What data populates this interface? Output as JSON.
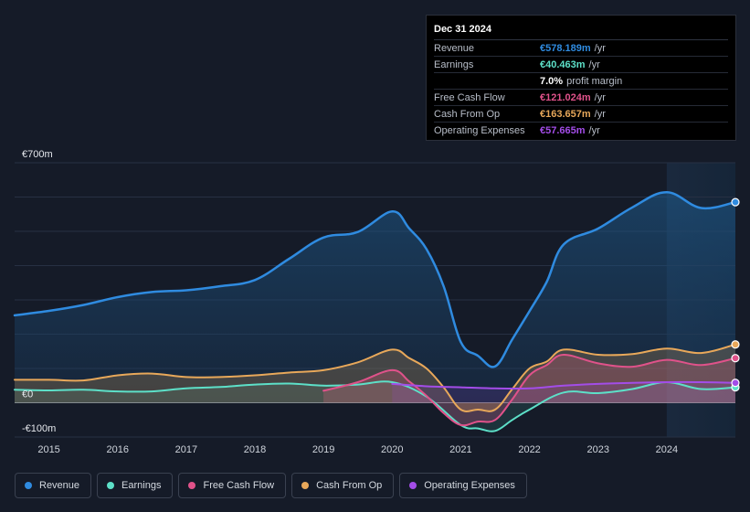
{
  "tooltip": {
    "date": "Dec 31 2024",
    "rows": [
      {
        "label": "Revenue",
        "value": "€578.189m",
        "unit": "/yr",
        "color": "#2f8be0"
      },
      {
        "label": "Earnings",
        "value": "€40.463m",
        "unit": "/yr",
        "color": "#5de0c8"
      },
      {
        "label": "",
        "value": "7.0%",
        "unit": "profit margin",
        "color": "#ffffff"
      },
      {
        "label": "Free Cash Flow",
        "value": "€121.024m",
        "unit": "/yr",
        "color": "#e0528a"
      },
      {
        "label": "Cash From Op",
        "value": "€163.657m",
        "unit": "/yr",
        "color": "#e8a85a"
      },
      {
        "label": "Operating Expenses",
        "value": "€57.665m",
        "unit": "/yr",
        "color": "#a34de8"
      }
    ]
  },
  "legend": [
    {
      "label": "Revenue",
      "color": "#2f8be0"
    },
    {
      "label": "Earnings",
      "color": "#5de0c8"
    },
    {
      "label": "Free Cash Flow",
      "color": "#e0528a"
    },
    {
      "label": "Cash From Op",
      "color": "#e8a85a"
    },
    {
      "label": "Operating Expenses",
      "color": "#a34de8"
    }
  ],
  "chart_data": {
    "type": "area",
    "title": "",
    "xlabel": "",
    "ylabel": "",
    "ylim": [
      -100,
      700
    ],
    "xlim": [
      2014.5,
      2025.0
    ],
    "y_tick_labels": [
      {
        "value": 700,
        "label": "€700m"
      },
      {
        "value": 0,
        "label": "€0"
      },
      {
        "value": -100,
        "label": "-€100m"
      }
    ],
    "x_tick_labels": [
      "2015",
      "2016",
      "2017",
      "2018",
      "2019",
      "2020",
      "2021",
      "2022",
      "2023",
      "2024"
    ],
    "x_ticks": [
      2015,
      2016,
      2017,
      2018,
      2019,
      2020,
      2021,
      2022,
      2023,
      2024
    ],
    "highlight_from": 2024.0,
    "series": [
      {
        "name": "Revenue",
        "color": "#2f8be0",
        "x": [
          2014.5,
          2015.0,
          2015.5,
          2016.0,
          2016.5,
          2017.0,
          2017.5,
          2018.0,
          2018.5,
          2019.0,
          2019.5,
          2020.0,
          2020.25,
          2020.5,
          2020.75,
          2021.0,
          2021.25,
          2021.5,
          2021.75,
          2022.0,
          2022.25,
          2022.5,
          2023.0,
          2023.5,
          2024.0,
          2024.5,
          2025.0
        ],
        "values": [
          255,
          268,
          285,
          308,
          323,
          328,
          340,
          358,
          420,
          482,
          498,
          558,
          508,
          448,
          340,
          177,
          137,
          106,
          185,
          267,
          352,
          462,
          508,
          570,
          614,
          568,
          585
        ]
      },
      {
        "name": "Earnings",
        "color": "#5de0c8",
        "x": [
          2014.5,
          2015.0,
          2015.5,
          2016.0,
          2016.5,
          2017.0,
          2017.5,
          2018.0,
          2018.5,
          2019.0,
          2019.5,
          2020.0,
          2020.5,
          2021.0,
          2021.25,
          2021.5,
          2021.75,
          2022.0,
          2022.5,
          2023.0,
          2023.5,
          2024.0,
          2024.5,
          2025.0
        ],
        "values": [
          38,
          36,
          38,
          33,
          33,
          42,
          46,
          53,
          56,
          50,
          53,
          60,
          18,
          -65,
          -75,
          -82,
          -50,
          -20,
          30,
          28,
          40,
          60,
          40,
          45
        ]
      },
      {
        "name": "Free Cash Flow",
        "color": "#e0528a",
        "x": [
          2019.0,
          2019.5,
          2020.0,
          2020.25,
          2020.5,
          2020.75,
          2021.0,
          2021.25,
          2021.5,
          2021.75,
          2022.0,
          2022.25,
          2022.5,
          2023.0,
          2023.5,
          2024.0,
          2024.5,
          2025.0
        ],
        "values": [
          35,
          60,
          95,
          62,
          20,
          -30,
          -65,
          -55,
          -50,
          10,
          80,
          110,
          140,
          115,
          105,
          125,
          110,
          130
        ]
      },
      {
        "name": "Cash From Op",
        "color": "#e8a85a",
        "x": [
          2014.5,
          2015.0,
          2015.5,
          2016.0,
          2016.5,
          2017.0,
          2017.5,
          2018.0,
          2018.5,
          2019.0,
          2019.5,
          2020.0,
          2020.25,
          2020.5,
          2020.75,
          2021.0,
          2021.25,
          2021.5,
          2021.75,
          2022.0,
          2022.25,
          2022.5,
          2023.0,
          2023.5,
          2024.0,
          2024.5,
          2025.0
        ],
        "values": [
          67,
          67,
          65,
          80,
          85,
          75,
          75,
          80,
          88,
          95,
          118,
          155,
          130,
          100,
          45,
          -20,
          -20,
          -20,
          40,
          100,
          120,
          155,
          140,
          142,
          158,
          145,
          170
        ]
      },
      {
        "name": "Operating Expenses",
        "color": "#a34de8",
        "x": [
          2020.0,
          2020.5,
          2021.0,
          2021.5,
          2022.0,
          2022.5,
          2023.0,
          2023.5,
          2024.0,
          2024.5,
          2025.0
        ],
        "values": [
          55,
          48,
          45,
          42,
          42,
          50,
          55,
          58,
          60,
          60,
          58
        ]
      }
    ]
  }
}
